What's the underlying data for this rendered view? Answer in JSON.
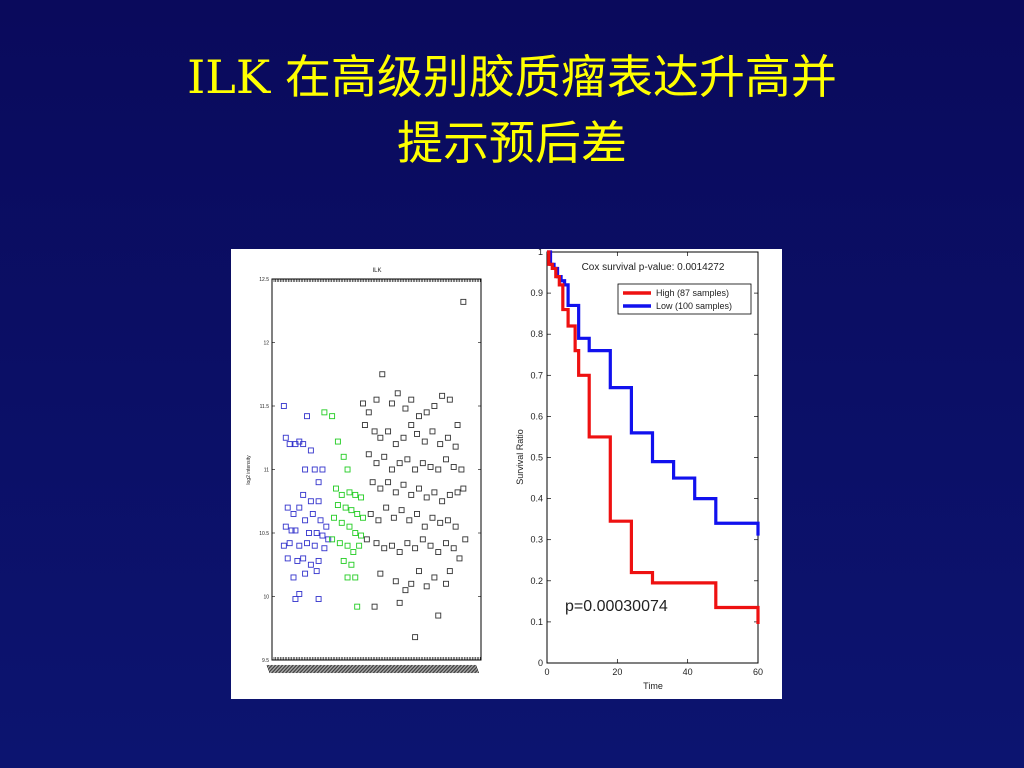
{
  "slide": {
    "title_line1": "ILK 在高级别胶质瘤表达升高并",
    "title_line2": "提示预后差"
  },
  "colors": {
    "background": "#0a0a5c",
    "title": "#ffff00",
    "high": "#ee1111",
    "low": "#1111ee",
    "scatter_blue": "#3333cc",
    "scatter_green": "#22cc22",
    "scatter_black": "#333333"
  },
  "chart_data": [
    {
      "type": "scatter",
      "title": "ILK",
      "ylabel": "log2 intensity",
      "ylim": [
        9.5,
        12.5
      ],
      "yticks": [
        "9.5",
        "10",
        "10.5",
        "11",
        "11.5",
        "12",
        "12.5"
      ],
      "series": [
        {
          "color": "blue",
          "points": [
            [
              0.02,
              11.5
            ],
            [
              0.03,
              11.25
            ],
            [
              0.05,
              11.2
            ],
            [
              0.08,
              11.2
            ],
            [
              0.1,
              11.22
            ],
            [
              0.12,
              11.2
            ],
            [
              0.14,
              11.42
            ],
            [
              0.16,
              11.15
            ],
            [
              0.13,
              11.0
            ],
            [
              0.18,
              11.0
            ],
            [
              0.2,
              10.9
            ],
            [
              0.22,
              11.0
            ],
            [
              0.12,
              10.8
            ],
            [
              0.16,
              10.75
            ],
            [
              0.2,
              10.75
            ],
            [
              0.04,
              10.7
            ],
            [
              0.07,
              10.65
            ],
            [
              0.1,
              10.7
            ],
            [
              0.13,
              10.6
            ],
            [
              0.17,
              10.65
            ],
            [
              0.21,
              10.6
            ],
            [
              0.24,
              10.55
            ],
            [
              0.03,
              10.55
            ],
            [
              0.06,
              10.52
            ],
            [
              0.08,
              10.52
            ],
            [
              0.15,
              10.5
            ],
            [
              0.19,
              10.5
            ],
            [
              0.22,
              10.48
            ],
            [
              0.25,
              10.45
            ],
            [
              0.02,
              10.4
            ],
            [
              0.05,
              10.42
            ],
            [
              0.1,
              10.4
            ],
            [
              0.14,
              10.42
            ],
            [
              0.18,
              10.4
            ],
            [
              0.23,
              10.38
            ],
            [
              0.04,
              10.3
            ],
            [
              0.09,
              10.28
            ],
            [
              0.12,
              10.3
            ],
            [
              0.16,
              10.25
            ],
            [
              0.2,
              10.28
            ],
            [
              0.07,
              10.15
            ],
            [
              0.13,
              10.18
            ],
            [
              0.19,
              10.2
            ],
            [
              0.1,
              10.02
            ],
            [
              0.08,
              9.98
            ],
            [
              0.2,
              9.98
            ]
          ]
        },
        {
          "color": "green",
          "points": [
            [
              0.23,
              11.45
            ],
            [
              0.27,
              11.42
            ],
            [
              0.3,
              11.22
            ],
            [
              0.33,
              11.1
            ],
            [
              0.35,
              11.0
            ],
            [
              0.29,
              10.85
            ],
            [
              0.32,
              10.8
            ],
            [
              0.36,
              10.82
            ],
            [
              0.39,
              10.8
            ],
            [
              0.42,
              10.78
            ],
            [
              0.3,
              10.72
            ],
            [
              0.34,
              10.7
            ],
            [
              0.37,
              10.68
            ],
            [
              0.4,
              10.65
            ],
            [
              0.43,
              10.62
            ],
            [
              0.28,
              10.62
            ],
            [
              0.32,
              10.58
            ],
            [
              0.36,
              10.55
            ],
            [
              0.39,
              10.5
            ],
            [
              0.42,
              10.48
            ],
            [
              0.27,
              10.45
            ],
            [
              0.31,
              10.42
            ],
            [
              0.35,
              10.4
            ],
            [
              0.38,
              10.35
            ],
            [
              0.41,
              10.4
            ],
            [
              0.33,
              10.28
            ],
            [
              0.37,
              10.25
            ],
            [
              0.35,
              10.15
            ],
            [
              0.39,
              10.15
            ],
            [
              0.4,
              9.92
            ]
          ]
        },
        {
          "color": "black",
          "points": [
            [
              0.43,
              11.52
            ],
            [
              0.46,
              11.45
            ],
            [
              0.5,
              11.55
            ],
            [
              0.53,
              11.75
            ],
            [
              0.58,
              11.52
            ],
            [
              0.61,
              11.6
            ],
            [
              0.65,
              11.48
            ],
            [
              0.68,
              11.55
            ],
            [
              0.72,
              11.42
            ],
            [
              0.76,
              11.45
            ],
            [
              0.8,
              11.5
            ],
            [
              0.84,
              11.58
            ],
            [
              0.88,
              11.55
            ],
            [
              0.92,
              11.35
            ],
            [
              0.95,
              12.32
            ],
            [
              0.44,
              11.35
            ],
            [
              0.49,
              11.3
            ],
            [
              0.52,
              11.25
            ],
            [
              0.56,
              11.3
            ],
            [
              0.6,
              11.2
            ],
            [
              0.64,
              11.25
            ],
            [
              0.68,
              11.35
            ],
            [
              0.71,
              11.28
            ],
            [
              0.75,
              11.22
            ],
            [
              0.79,
              11.3
            ],
            [
              0.83,
              11.2
            ],
            [
              0.87,
              11.25
            ],
            [
              0.91,
              11.18
            ],
            [
              0.46,
              11.12
            ],
            [
              0.5,
              11.05
            ],
            [
              0.54,
              11.1
            ],
            [
              0.58,
              11.0
            ],
            [
              0.62,
              11.05
            ],
            [
              0.66,
              11.08
            ],
            [
              0.7,
              11.0
            ],
            [
              0.74,
              11.05
            ],
            [
              0.78,
              11.02
            ],
            [
              0.82,
              11.0
            ],
            [
              0.86,
              11.08
            ],
            [
              0.9,
              11.02
            ],
            [
              0.94,
              11.0
            ],
            [
              0.48,
              10.9
            ],
            [
              0.52,
              10.85
            ],
            [
              0.56,
              10.9
            ],
            [
              0.6,
              10.82
            ],
            [
              0.64,
              10.88
            ],
            [
              0.68,
              10.8
            ],
            [
              0.72,
              10.85
            ],
            [
              0.76,
              10.78
            ],
            [
              0.8,
              10.82
            ],
            [
              0.84,
              10.75
            ],
            [
              0.88,
              10.8
            ],
            [
              0.92,
              10.82
            ],
            [
              0.95,
              10.85
            ],
            [
              0.47,
              10.65
            ],
            [
              0.51,
              10.6
            ],
            [
              0.55,
              10.7
            ],
            [
              0.59,
              10.62
            ],
            [
              0.63,
              10.68
            ],
            [
              0.67,
              10.6
            ],
            [
              0.71,
              10.65
            ],
            [
              0.75,
              10.55
            ],
            [
              0.79,
              10.62
            ],
            [
              0.83,
              10.58
            ],
            [
              0.87,
              10.6
            ],
            [
              0.91,
              10.55
            ],
            [
              0.45,
              10.45
            ],
            [
              0.5,
              10.42
            ],
            [
              0.54,
              10.38
            ],
            [
              0.58,
              10.4
            ],
            [
              0.62,
              10.35
            ],
            [
              0.66,
              10.42
            ],
            [
              0.7,
              10.38
            ],
            [
              0.74,
              10.45
            ],
            [
              0.78,
              10.4
            ],
            [
              0.82,
              10.35
            ],
            [
              0.86,
              10.42
            ],
            [
              0.9,
              10.38
            ],
            [
              0.96,
              10.45
            ],
            [
              0.93,
              10.3
            ],
            [
              0.52,
              10.18
            ],
            [
              0.6,
              10.12
            ],
            [
              0.68,
              10.1
            ],
            [
              0.72,
              10.2
            ],
            [
              0.8,
              10.15
            ],
            [
              0.88,
              10.2
            ],
            [
              0.65,
              10.05
            ],
            [
              0.76,
              10.08
            ],
            [
              0.86,
              10.1
            ],
            [
              0.49,
              9.92
            ],
            [
              0.62,
              9.95
            ],
            [
              0.82,
              9.85
            ],
            [
              0.7,
              9.68
            ]
          ]
        }
      ]
    },
    {
      "type": "line",
      "title": "Cox survival p-value: 0.0014272",
      "xlabel": "Time",
      "ylabel": "Survival Ratio",
      "xlim": [
        0,
        60
      ],
      "ylim": [
        0,
        1
      ],
      "xticks": [
        "0",
        "20",
        "40",
        "60"
      ],
      "yticks": [
        "0",
        "0.1",
        "0.2",
        "0.3",
        "0.4",
        "0.5",
        "0.6",
        "0.7",
        "0.8",
        "0.9",
        "1"
      ],
      "legend_position": "top-right",
      "annotation": "p=0.00030074",
      "series": [
        {
          "name": "High (87 samples)",
          "color": "red",
          "steps": [
            [
              0,
              1
            ],
            [
              0.5,
              0.97
            ],
            [
              1.5,
              0.96
            ],
            [
              2.5,
              0.94
            ],
            [
              3.5,
              0.92
            ],
            [
              4.5,
              0.86
            ],
            [
              6,
              0.82
            ],
            [
              8,
              0.76
            ],
            [
              9,
              0.7
            ],
            [
              12,
              0.55
            ],
            [
              18,
              0.345
            ],
            [
              24,
              0.22
            ],
            [
              30,
              0.195
            ],
            [
              48,
              0.135
            ],
            [
              60,
              0.095
            ]
          ]
        },
        {
          "name": "Low (100 samples)",
          "color": "blue",
          "steps": [
            [
              0,
              1
            ],
            [
              1,
              0.97
            ],
            [
              2,
              0.96
            ],
            [
              3,
              0.94
            ],
            [
              4,
              0.93
            ],
            [
              5,
              0.92
            ],
            [
              6,
              0.87
            ],
            [
              9,
              0.79
            ],
            [
              12,
              0.76
            ],
            [
              18,
              0.67
            ],
            [
              24,
              0.56
            ],
            [
              30,
              0.49
            ],
            [
              36,
              0.45
            ],
            [
              42,
              0.4
            ],
            [
              48,
              0.34
            ],
            [
              60,
              0.31
            ]
          ]
        }
      ]
    }
  ]
}
